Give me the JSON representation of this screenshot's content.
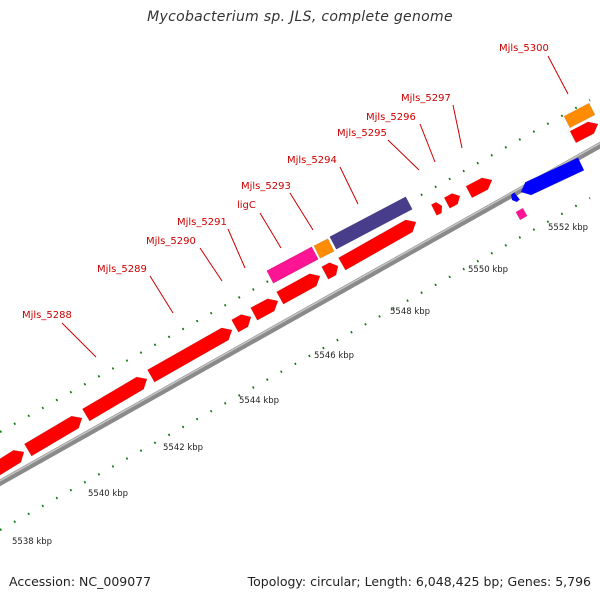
{
  "title": "Mycobacterium sp. JLS, complete genome",
  "footer": {
    "accession_label": "Accession:",
    "accession": "NC_009077",
    "topology_text": "Topology: circular; Length: 6,048,425 bp; Genes: 5,796"
  },
  "colors": {
    "gene_red": "#ff0000",
    "gene_pink": "#ff1493",
    "gene_orange": "#ff8c00",
    "gene_slate": "#483d8b",
    "gene_blue": "#0000ff",
    "backbone": "#999999",
    "tick": "#0a7a0a",
    "label": "#cc0000"
  },
  "scale": {
    "ticks_kbp": [
      5538,
      5540,
      5542,
      5544,
      5546,
      5548,
      5550,
      5552
    ],
    "tick_labels": [
      "5538 kbp",
      "5540 kbp",
      "5542 kbp",
      "5544 kbp",
      "5546 kbp",
      "5548 kbp",
      "5550 kbp",
      "5552 kbp"
    ]
  },
  "genes": [
    {
      "label": "Mjls_5288",
      "color": "red"
    },
    {
      "label": "Mjls_5289",
      "color": "red"
    },
    {
      "label": "Mjls_5290",
      "color": "red"
    },
    {
      "label": "Mjls_5291",
      "color": "red"
    },
    {
      "label": "ligC",
      "color": "pink"
    },
    {
      "label": "Mjls_5293",
      "color": "orange"
    },
    {
      "label": "Mjls_5294",
      "color": "slate"
    },
    {
      "label": "Mjls_5295",
      "color": "red"
    },
    {
      "label": "Mjls_5296",
      "color": "red"
    },
    {
      "label": "Mjls_5297",
      "color": "red"
    },
    {
      "label": "Mjls_5300",
      "color": "orange"
    }
  ]
}
